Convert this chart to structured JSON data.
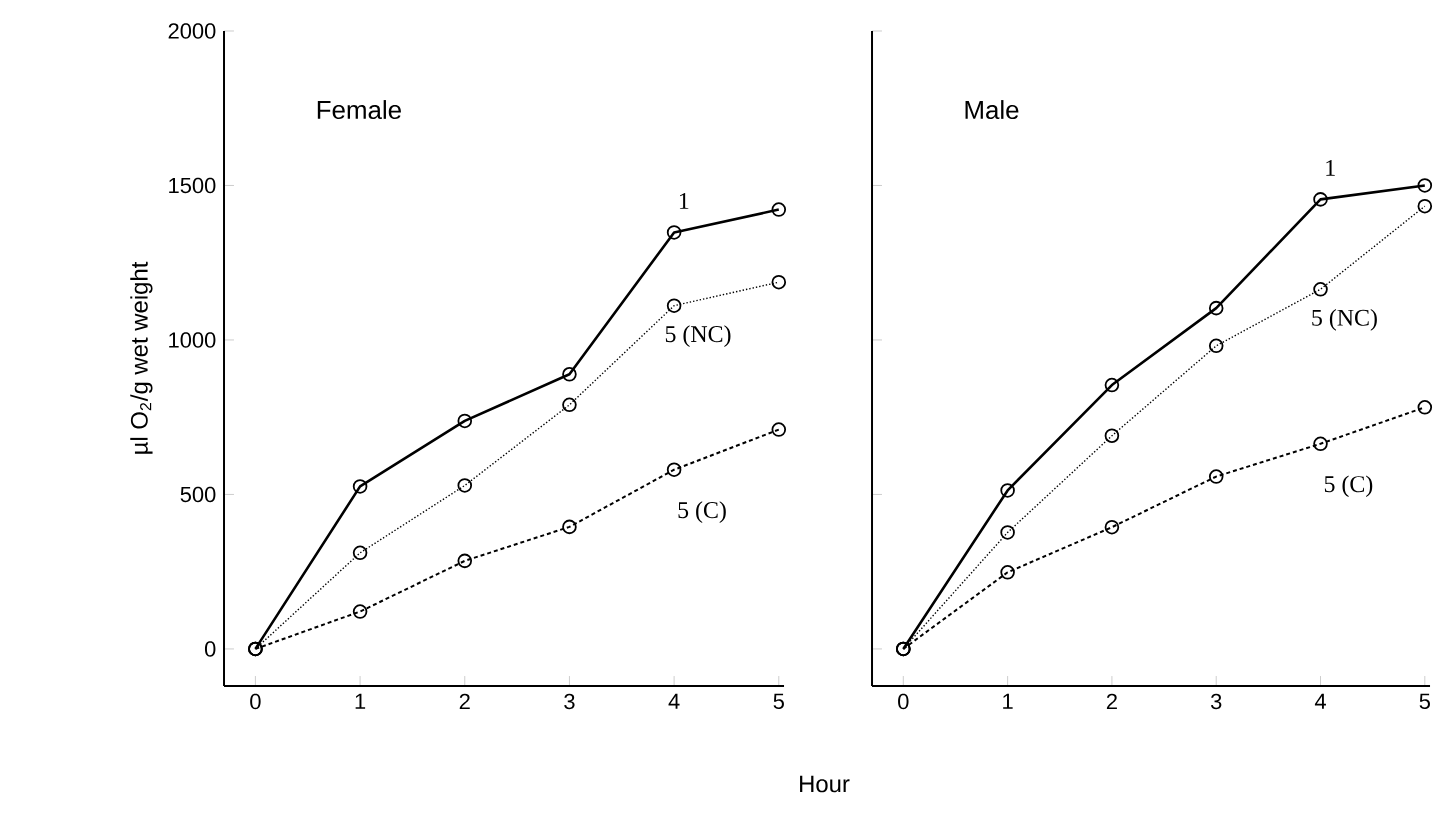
{
  "chart_data": [
    {
      "type": "line",
      "title": "Female",
      "xlabel": "Hour",
      "ylabel": "µl O$_{2}$/g wet weight",
      "x": [
        0,
        1,
        2,
        3,
        4,
        5
      ],
      "xlim": [
        -0.3,
        5.05
      ],
      "ylim": [
        -120,
        2000
      ],
      "xticks": [
        0,
        1,
        2,
        3,
        4,
        5
      ],
      "yticks": [
        0,
        500,
        1000,
        1500,
        2000
      ],
      "marker": "circle",
      "series": [
        {
          "name": "1",
          "color": "#000000",
          "line_style": "solid",
          "values": [
            0,
            526,
            738,
            889,
            1348,
            1422
          ]
        },
        {
          "name": "5 (NC)",
          "color": "#000000",
          "line_style": "dotted",
          "values": [
            0,
            311,
            529,
            790,
            1111,
            1187
          ]
        },
        {
          "name": "5 (C)",
          "color": "#000000",
          "line_style": "dashed",
          "values": [
            0,
            121,
            285,
            395,
            580,
            710
          ]
        }
      ]
    },
    {
      "type": "line",
      "title": "Male",
      "x": [
        0,
        1,
        2,
        3,
        4,
        5
      ],
      "xlim": [
        -0.3,
        5.05
      ],
      "ylim": [
        -120,
        2000
      ],
      "xticks": [
        0,
        1,
        2,
        3,
        4,
        5
      ],
      "yticks": [
        0,
        500,
        1000,
        1500,
        2000
      ],
      "tick_labels": "x",
      "marker": "circle",
      "series": [
        {
          "name": "1",
          "color": "#000000",
          "line_style": "solid",
          "values": [
            0,
            513,
            854,
            1103,
            1455,
            1500
          ]
        },
        {
          "name": "5 (NC)",
          "color": "#000000",
          "line_style": "dotted",
          "values": [
            0,
            377,
            690,
            981,
            1164,
            1433
          ]
        },
        {
          "name": "5 (C)",
          "color": "#000000",
          "line_style": "dashed",
          "values": [
            0,
            248,
            394,
            558,
            664,
            782
          ]
        }
      ]
    }
  ]
}
